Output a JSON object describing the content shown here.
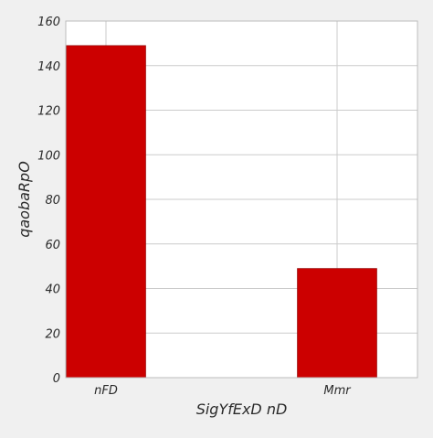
{
  "chart_data": {
    "type": "bar",
    "title": "",
    "xlabel": "SigYfExD  nD",
    "ylabel": "qaobaRpO",
    "categories": [
      "nFD",
      "Mmr"
    ],
    "values": [
      149,
      49
    ],
    "ylim": [
      0,
      160
    ],
    "yticks": [
      "0",
      "20",
      "40",
      "60",
      "80",
      "100",
      "120",
      "140",
      "160"
    ],
    "grid": true,
    "legend": "none",
    "colors": {
      "bar": "#cc0000",
      "bar_edge": "#8a0000",
      "plot_background": "#ffffff",
      "figure_background": "#f0f0f0",
      "grid": "#cbcbcb",
      "spine": "#bcbcbc"
    }
  }
}
